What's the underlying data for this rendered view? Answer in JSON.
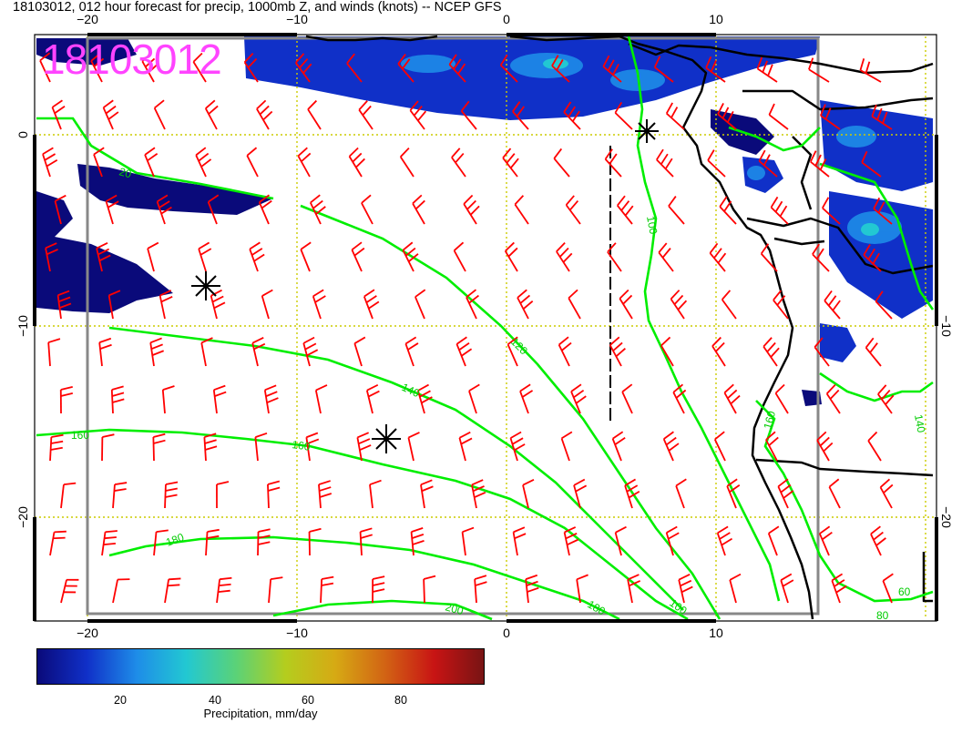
{
  "title": "18103012, 012 hour forecast for precip, 1000mb Z, and winds (knots) -- NCEP GFS",
  "stamp": "18103012",
  "axes": {
    "x_ticks_top": [
      "−20",
      "−10",
      "0",
      "10"
    ],
    "x_ticks_bottom": [
      "−20",
      "−10",
      "0",
      "10"
    ],
    "y_ticks_left": [
      "0",
      "−10",
      "−20"
    ],
    "y_ticks_right": [
      "−10",
      "−20"
    ]
  },
  "contour_labels": [
    "20",
    "100",
    "120",
    "140",
    "160",
    "160",
    "180",
    "180",
    "200",
    "160",
    "140",
    "60",
    "80",
    "100"
  ],
  "colorbar": {
    "label": "Precipitation, mm/day",
    "ticks": [
      "20",
      "40",
      "60",
      "80"
    ],
    "colors": [
      "#0a0a7a",
      "#1030c8",
      "#1e8ce8",
      "#22c8d2",
      "#5ad278",
      "#b4cd1e",
      "#d6aa14",
      "#d26414",
      "#c81414",
      "#781414"
    ]
  },
  "colors": {
    "wind_barbs": "#ff0000",
    "contours": "#00ee00",
    "precip": "#1030c8",
    "coastline": "#000000",
    "grid": "#cccc00",
    "stamp": "#ff44ff"
  }
}
